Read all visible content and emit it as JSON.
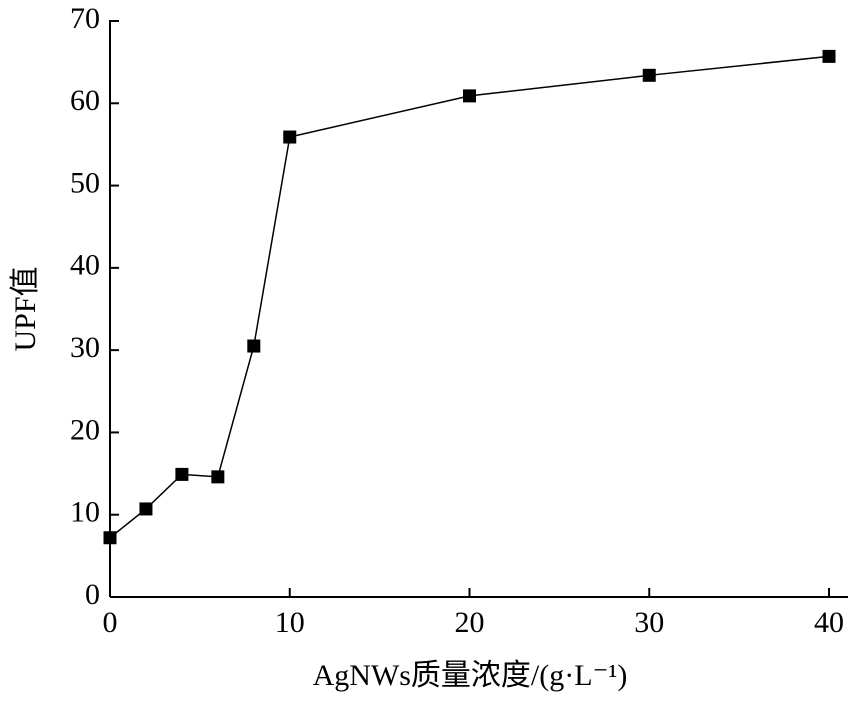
{
  "chart_data": {
    "type": "line",
    "x_label": "AgNWs质量浓度/(g·L⁻¹)",
    "y_label": "UPF值",
    "x": [
      0,
      2,
      4,
      6,
      8,
      10,
      20,
      30,
      40
    ],
    "series": [
      {
        "color": "#000000",
        "values": [
          7.2,
          10.7,
          14.9,
          14.6,
          30.5,
          55.9,
          60.9,
          63.4,
          65.7
        ]
      }
    ],
    "xlim": [
      0,
      40
    ],
    "xticks": [
      0,
      10,
      20,
      30,
      40
    ],
    "ylim": [
      0,
      70
    ],
    "yticks": [
      0,
      10,
      20,
      30,
      40,
      50,
      60,
      70
    ],
    "marker": "square"
  }
}
